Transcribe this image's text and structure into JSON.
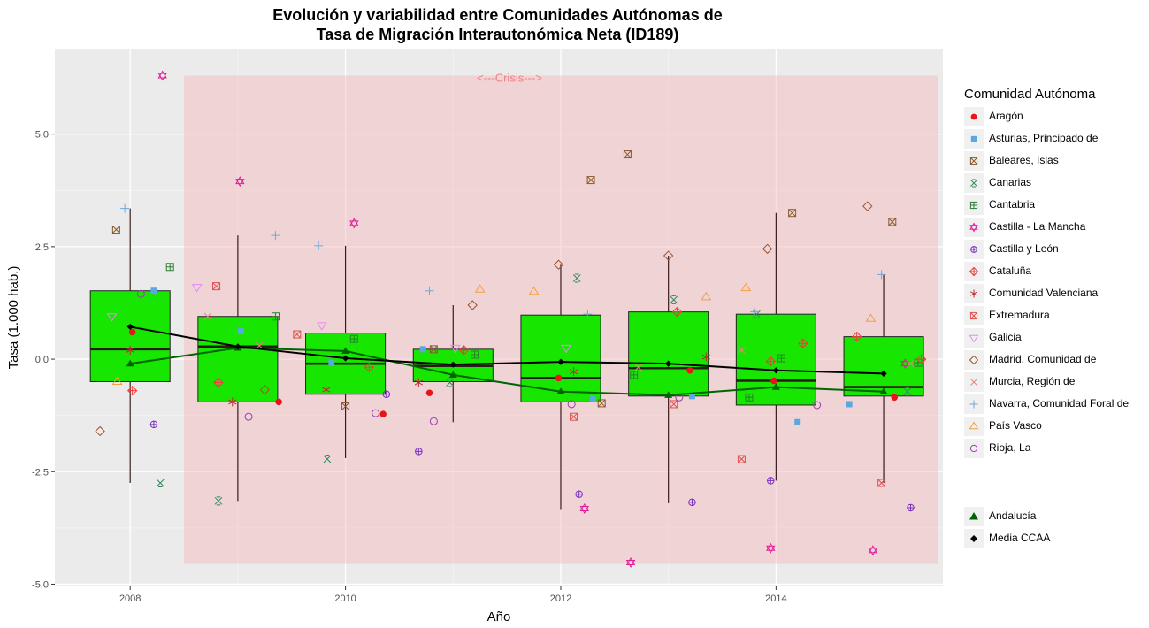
{
  "title_line1": "Evolución y variabilidad entre Comunidades Autónomas de",
  "title_line2": "Tasa de Migración Interautonómica Neta (ID189)",
  "chart_data": {
    "type": "boxplot",
    "xlabel": "Año",
    "ylabel": "Tasa (1.000 hab.)",
    "xlim": [
      2007.3,
      2015.55
    ],
    "ylim": [
      -5.05,
      6.9
    ],
    "x_ticks": [
      2008,
      2010,
      2012,
      2014
    ],
    "y_ticks": [
      -5.0,
      -2.5,
      0.0,
      2.5,
      5.0
    ],
    "y_tick_labels": [
      "-5.0",
      "-2.5",
      "0.0",
      "2.5",
      "5.0"
    ],
    "grid": true,
    "legend_position": "right",
    "legend_title": "Comunidad Autónoma",
    "crisis_band": {
      "label": "<---Crisis--->",
      "x_start": 2008.5,
      "x_end": 2015.5,
      "y_min": -4.55,
      "y_max": 6.3,
      "color": "#f4b6bb"
    },
    "box_color": "#16e600",
    "boxes": [
      {
        "year": 2008,
        "whisker_low": -2.75,
        "q1": -0.5,
        "median": 0.22,
        "q3": 1.52,
        "whisker_high": 3.35
      },
      {
        "year": 2009,
        "whisker_low": -3.15,
        "q1": -0.95,
        "median": 0.28,
        "q3": 0.95,
        "whisker_high": 2.75
      },
      {
        "year": 2010,
        "whisker_low": -2.2,
        "q1": -0.78,
        "median": -0.1,
        "q3": 0.58,
        "whisker_high": 2.52
      },
      {
        "year": 2011,
        "whisker_low": -1.4,
        "q1": -0.5,
        "median": -0.15,
        "q3": 0.22,
        "whisker_high": 1.2
      },
      {
        "year": 2012,
        "whisker_low": -3.35,
        "q1": -0.95,
        "median": -0.42,
        "q3": 0.98,
        "whisker_high": 2.1
      },
      {
        "year": 2013,
        "whisker_low": -3.2,
        "q1": -0.82,
        "median": -0.2,
        "q3": 1.05,
        "whisker_high": 2.3
      },
      {
        "year": 2014,
        "whisker_low": -2.7,
        "q1": -1.02,
        "median": -0.48,
        "q3": 1.0,
        "whisker_high": 3.25
      },
      {
        "year": 2015,
        "whisker_low": -2.75,
        "q1": -0.82,
        "median": -0.62,
        "q3": 0.5,
        "whisker_high": 1.88
      }
    ],
    "lines": [
      {
        "name": "Media CCAA",
        "color": "#000000",
        "marker": "diamond",
        "x": [
          2008,
          2009,
          2010,
          2011,
          2012,
          2013,
          2014,
          2015
        ],
        "y": [
          0.72,
          0.28,
          0.02,
          -0.12,
          -0.06,
          -0.1,
          -0.25,
          -0.32
        ]
      },
      {
        "name": "Andalucía",
        "color": "#006400",
        "marker": "triangle",
        "x": [
          2008,
          2009,
          2010,
          2011,
          2012,
          2013,
          2014,
          2015
        ],
        "y": [
          -0.1,
          0.25,
          0.18,
          -0.35,
          -0.72,
          -0.8,
          -0.62,
          -0.72
        ]
      }
    ],
    "series": [
      {
        "name": "Aragón",
        "marker": "dot",
        "color": "#e8141a",
        "x": [
          2008.02,
          2009.38,
          2010.35,
          2010.78,
          2011.98,
          2013.2,
          2013.98,
          2015.1
        ],
        "y": [
          0.6,
          -0.95,
          -1.22,
          -0.75,
          -0.42,
          -0.25,
          -0.48,
          -0.85
        ]
      },
      {
        "name": "Asturias, Principado de",
        "marker": "square",
        "color": "#59a9e0",
        "x": [
          2008.22,
          2009.03,
          2009.87,
          2010.72,
          2012.3,
          2013.22,
          2014.2,
          2014.68
        ],
        "y": [
          1.52,
          0.62,
          -0.08,
          0.22,
          -0.88,
          -0.82,
          -1.4,
          -1.0
        ]
      },
      {
        "name": "Baleares, Islas",
        "marker": "boxx",
        "color": "#8b5a2b",
        "x": [
          2007.87,
          2010.0,
          2010.82,
          2012.28,
          2012.38,
          2012.62,
          2014.15,
          2015.08
        ],
        "y": [
          2.88,
          -1.05,
          0.22,
          3.98,
          -0.98,
          4.55,
          3.25,
          3.05
        ]
      },
      {
        "name": "Canarias",
        "marker": "boxcross",
        "color": "#2e8b57",
        "x": [
          2008.28,
          2008.82,
          2009.83,
          2010.97,
          2012.15,
          2013.05,
          2013.82,
          2015.22
        ],
        "y": [
          -2.75,
          -3.15,
          -2.22,
          -0.52,
          1.8,
          1.32,
          1.0,
          -0.72
        ]
      },
      {
        "name": "Cantabria",
        "marker": "boxplus",
        "color": "#2e7d32",
        "x": [
          2008.37,
          2009.35,
          2010.08,
          2011.2,
          2012.68,
          2013.75,
          2014.05,
          2015.32
        ],
        "y": [
          2.05,
          0.95,
          0.45,
          0.1,
          -0.35,
          -0.85,
          0.02,
          -0.08
        ]
      },
      {
        "name": "Castilla - La Mancha",
        "marker": "star",
        "color": "#e0209a",
        "x": [
          2008.3,
          2009.02,
          2010.08,
          2012.22,
          2012.65,
          2013.95,
          2014.9,
          2015.2
        ],
        "y": [
          6.3,
          3.95,
          3.02,
          -3.32,
          -4.52,
          -4.2,
          -4.25,
          -0.1
        ]
      },
      {
        "name": "Castilla y León",
        "marker": "circleplus",
        "color": "#7b2fbf",
        "x": [
          2008.22,
          2010.38,
          2010.68,
          2012.17,
          2013.22,
          2013.95,
          2015.25
        ],
        "y": [
          -1.45,
          -0.78,
          -2.05,
          -3.0,
          -3.18,
          -2.7,
          -3.3
        ]
      },
      {
        "name": "Cataluña",
        "marker": "diamondplus",
        "color": "#f03c3c",
        "x": [
          2008.02,
          2008.82,
          2010.22,
          2011.1,
          2013.08,
          2013.95,
          2014.25,
          2014.75,
          2015.35
        ],
        "y": [
          -0.7,
          -0.52,
          -0.18,
          0.2,
          1.05,
          -0.05,
          0.35,
          0.5,
          0.0
        ]
      },
      {
        "name": "Comunidad Valenciana",
        "marker": "asterisk",
        "color": "#c0272d",
        "x": [
          2008.0,
          2008.95,
          2009.82,
          2010.68,
          2012.12,
          2013.35
        ],
        "y": [
          0.2,
          -0.95,
          -0.68,
          -0.52,
          -0.28,
          0.05
        ]
      },
      {
        "name": "Extremadura",
        "marker": "boxx",
        "color": "#e05050",
        "x": [
          2008.8,
          2009.55,
          2012.12,
          2013.05,
          2013.68,
          2014.98
        ],
        "y": [
          1.62,
          0.55,
          -1.28,
          -1.0,
          -2.22,
          -2.75
        ]
      },
      {
        "name": "Galicia",
        "marker": "triangledown",
        "color": "#e38bf0",
        "x": [
          2007.83,
          2008.62,
          2009.78,
          2011.02,
          2012.05
        ],
        "y": [
          0.95,
          1.6,
          0.75,
          0.25,
          0.25
        ]
      },
      {
        "name": "Madrid, Comunidad de",
        "marker": "diamond",
        "color": "#a0522d",
        "x": [
          2007.72,
          2009.25,
          2011.18,
          2011.98,
          2013.0,
          2013.92,
          2014.85
        ],
        "y": [
          -1.6,
          -0.68,
          1.2,
          2.1,
          2.3,
          2.45,
          3.4
        ]
      },
      {
        "name": "Murcia, Región de",
        "marker": "x",
        "color": "#f08080",
        "x": [
          2008.72,
          2009.2,
          2012.72,
          2013.68,
          2015.25
        ],
        "y": [
          0.95,
          0.3,
          -0.18,
          0.2,
          -0.1
        ]
      },
      {
        "name": "Navarra, Comunidad Foral de",
        "marker": "plus",
        "color": "#6fa8dc",
        "x": [
          2007.95,
          2009.35,
          2009.75,
          2010.78,
          2012.25,
          2013.8,
          2014.98
        ],
        "y": [
          3.35,
          2.75,
          2.52,
          1.52,
          1.0,
          1.05,
          1.88
        ]
      },
      {
        "name": "País Vasco",
        "marker": "triangle",
        "color": "#f5a040",
        "x": [
          2007.88,
          2011.25,
          2011.75,
          2013.35,
          2013.72,
          2014.88
        ],
        "y": [
          -0.5,
          1.55,
          1.5,
          1.38,
          1.58,
          0.9
        ]
      },
      {
        "name": "Rioja, La",
        "marker": "circle",
        "color": "#a23bb0",
        "x": [
          2008.1,
          2009.1,
          2010.28,
          2010.82,
          2012.1,
          2013.1,
          2014.38
        ],
        "y": [
          1.45,
          -1.28,
          -1.2,
          -1.38,
          -1.0,
          -0.85,
          -1.02
        ]
      }
    ],
    "legend_items": [
      {
        "label": "Aragón",
        "marker": "dot",
        "color": "#e8141a"
      },
      {
        "label": "Asturias, Principado de",
        "marker": "square",
        "color": "#59a9e0"
      },
      {
        "label": "Baleares, Islas",
        "marker": "boxx",
        "color": "#8b5a2b"
      },
      {
        "label": "Canarias",
        "marker": "boxcross",
        "color": "#2e8b57"
      },
      {
        "label": "Cantabria",
        "marker": "boxplus",
        "color": "#2e7d32"
      },
      {
        "label": "Castilla - La Mancha",
        "marker": "star",
        "color": "#e0209a"
      },
      {
        "label": "Castilla y León",
        "marker": "circleplus",
        "color": "#7b2fbf"
      },
      {
        "label": "Cataluña",
        "marker": "diamondplus",
        "color": "#f03c3c"
      },
      {
        "label": "Comunidad Valenciana",
        "marker": "asterisk",
        "color": "#c0272d"
      },
      {
        "label": "Extremadura",
        "marker": "boxx",
        "color": "#e05050"
      },
      {
        "label": "Galicia",
        "marker": "triangledown",
        "color": "#e38bf0"
      },
      {
        "label": "Madrid, Comunidad de",
        "marker": "diamond",
        "color": "#a0522d"
      },
      {
        "label": "Murcia, Región de",
        "marker": "x",
        "color": "#f08080"
      },
      {
        "label": "Navarra, Comunidad Foral de",
        "marker": "plus",
        "color": "#6fa8dc"
      },
      {
        "label": "País Vasco",
        "marker": "triangle",
        "color": "#f5a040"
      },
      {
        "label": "Rioja, La",
        "marker": "circle",
        "color": "#a23bb0"
      }
    ],
    "legend_items_2": [
      {
        "label": "Andalucía",
        "marker": "filledtriangle",
        "color": "#006400"
      },
      {
        "label": "Media CCAA",
        "marker": "filleddiamond",
        "color": "#000000"
      }
    ]
  }
}
